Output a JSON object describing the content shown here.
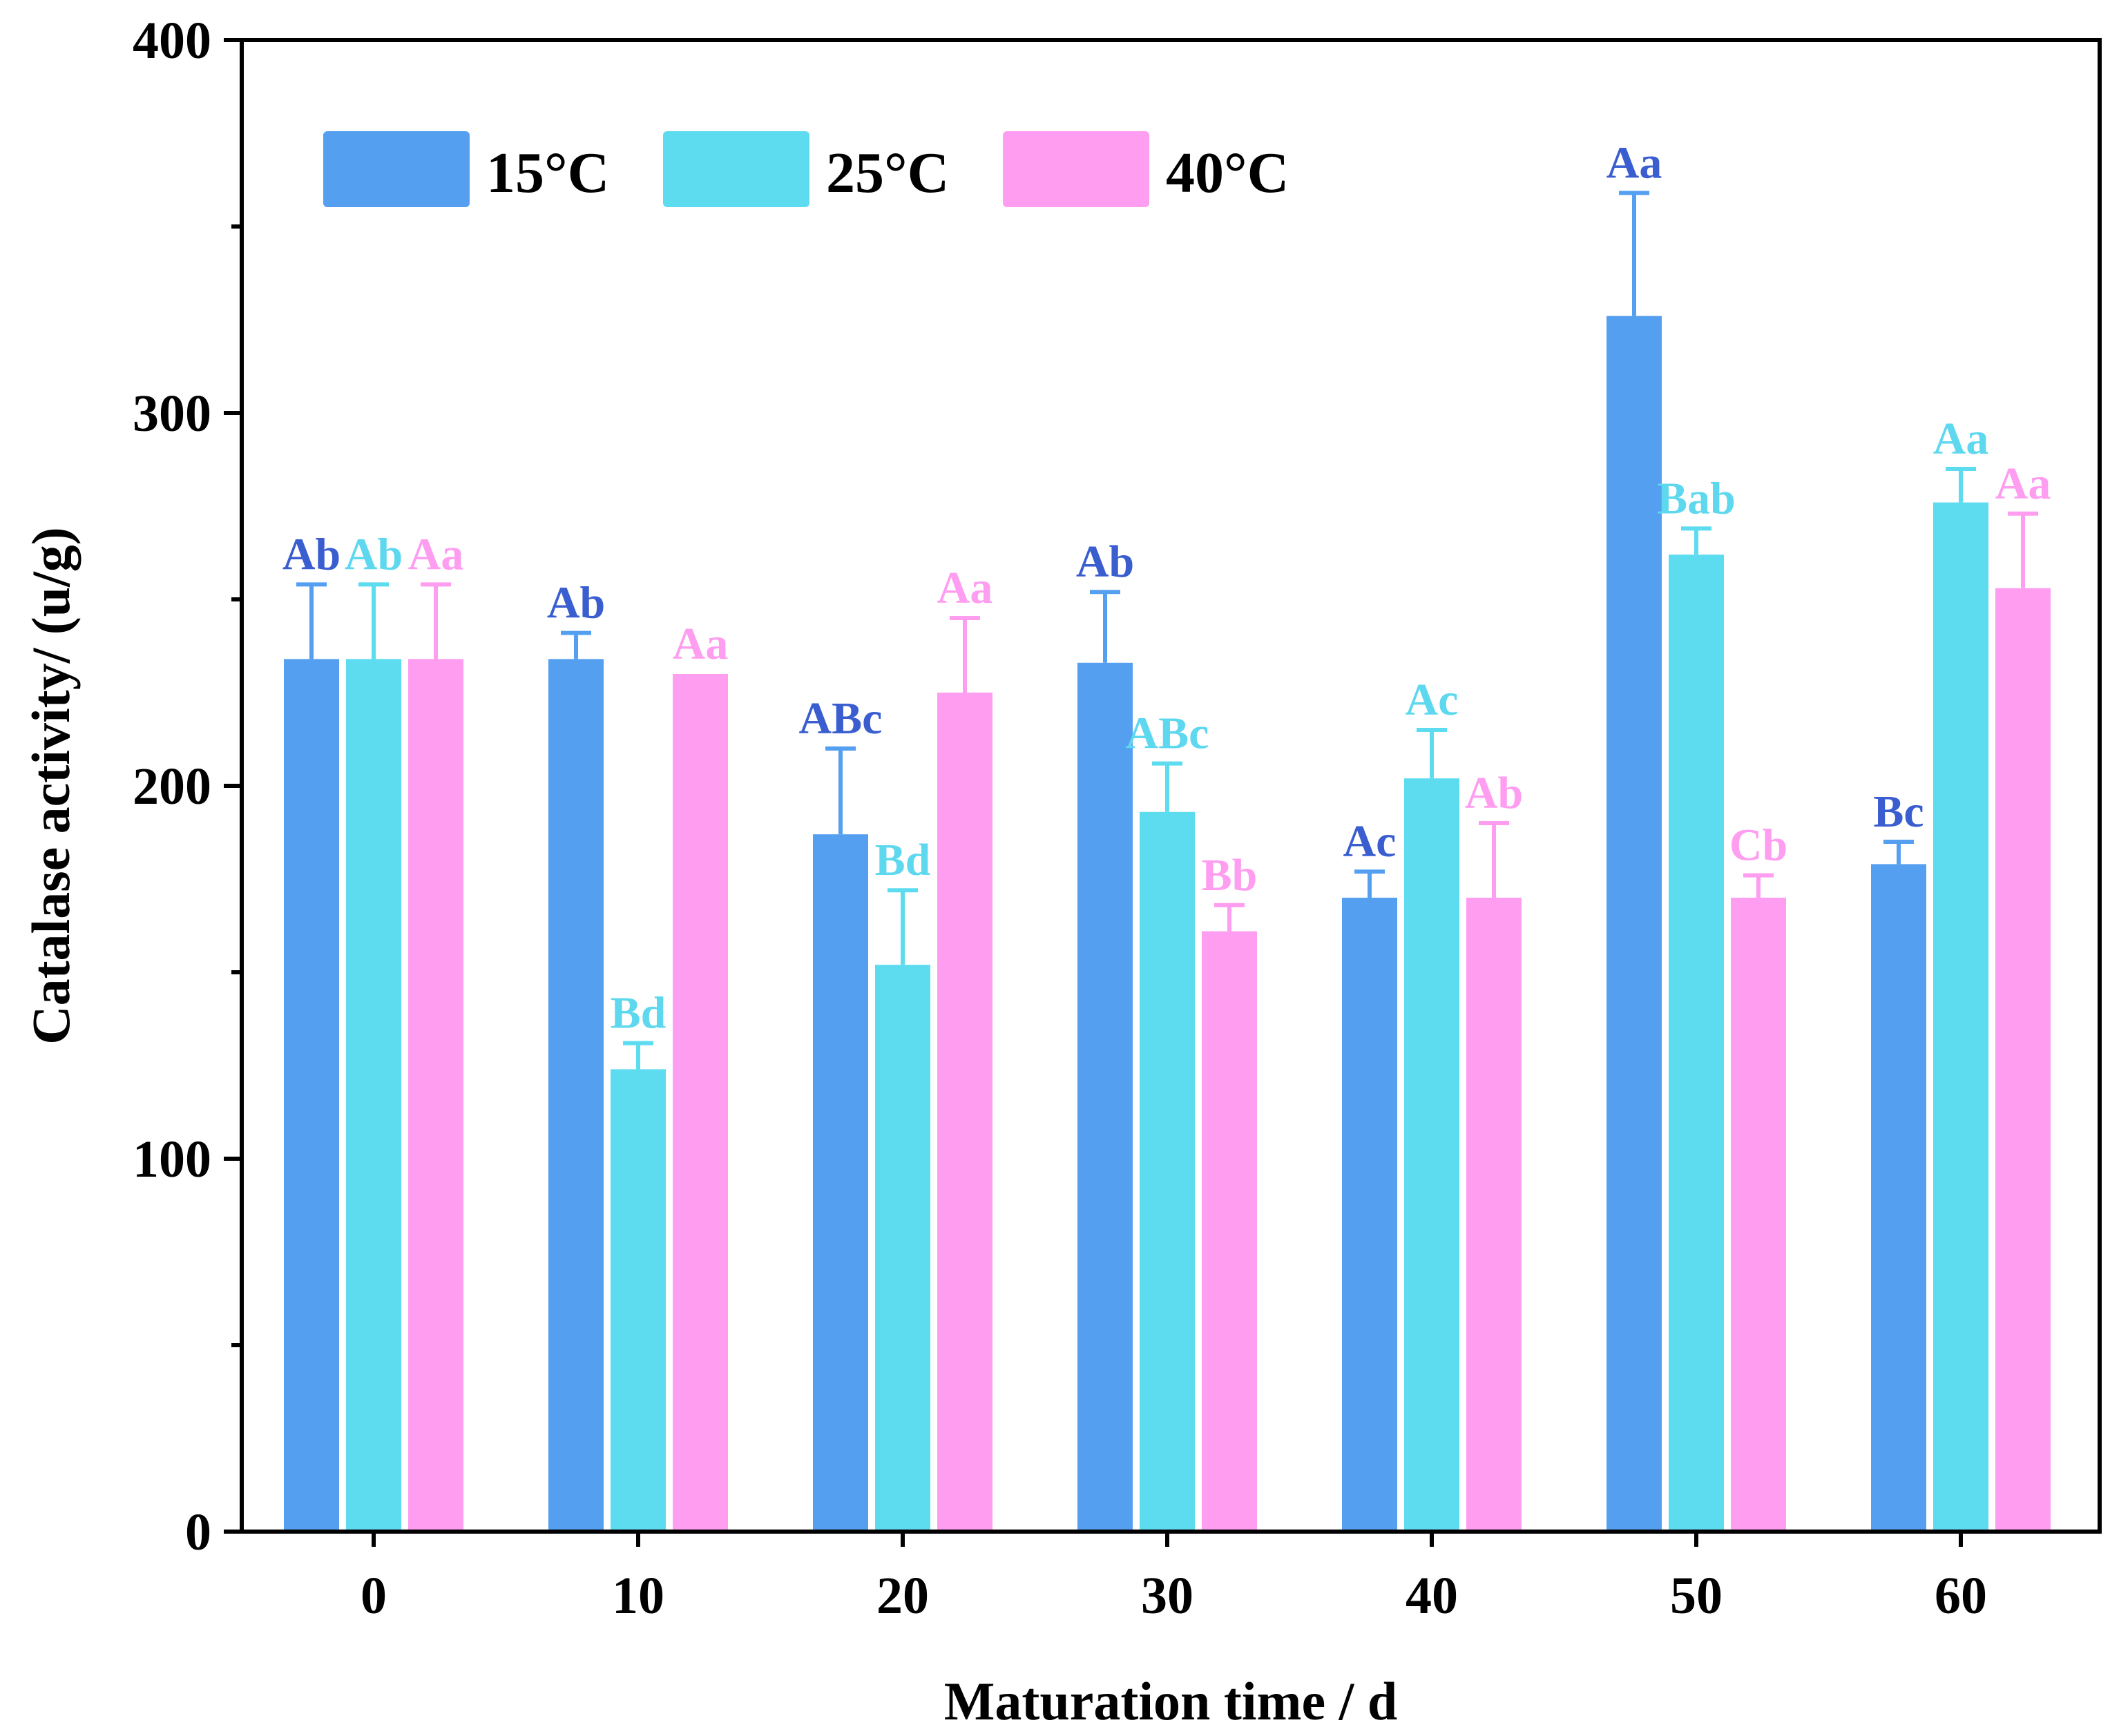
{
  "chart_data": {
    "type": "bar",
    "xlabel": "Maturation time / d",
    "ylabel": "Catalase activity/ (u/g)",
    "ylim": [
      0,
      400
    ],
    "yticks": [
      "0",
      "100",
      "200",
      "300",
      "400"
    ],
    "categories": [
      "0",
      "10",
      "20",
      "30",
      "40",
      "50",
      "60"
    ],
    "legend_position": "top-left",
    "grid": false,
    "series": [
      {
        "name": "15°C",
        "color": "#559ff0",
        "label_color": "#3a5ed0",
        "values": [
          234,
          234,
          187,
          233,
          170,
          326,
          179
        ],
        "errors": [
          20,
          7,
          23,
          19,
          7,
          33,
          6
        ],
        "labels": [
          "Ab",
          "Ab",
          "ABc",
          "Ab",
          "Ac",
          "Aa",
          "Bc"
        ]
      },
      {
        "name": "25°C",
        "color": "#5ddcf0",
        "label_color": "#5dd8ee",
        "values": [
          234,
          124,
          152,
          193,
          202,
          262,
          276
        ],
        "errors": [
          20,
          7,
          20,
          13,
          13,
          7,
          9
        ],
        "labels": [
          "Ab",
          "Bd",
          "Bd",
          "ABc",
          "Ac",
          "Bab",
          "Aa"
        ]
      },
      {
        "name": "40°C",
        "color": "#ff9df0",
        "label_color": "#ff9df0",
        "values": [
          234,
          230,
          225,
          161,
          170,
          170,
          253
        ],
        "errors": [
          20,
          0,
          20,
          7,
          20,
          6,
          20
        ],
        "labels": [
          "Aa",
          "Aa",
          "Aa",
          "Bb",
          "Ab",
          "Cb",
          "Aa"
        ]
      }
    ]
  }
}
